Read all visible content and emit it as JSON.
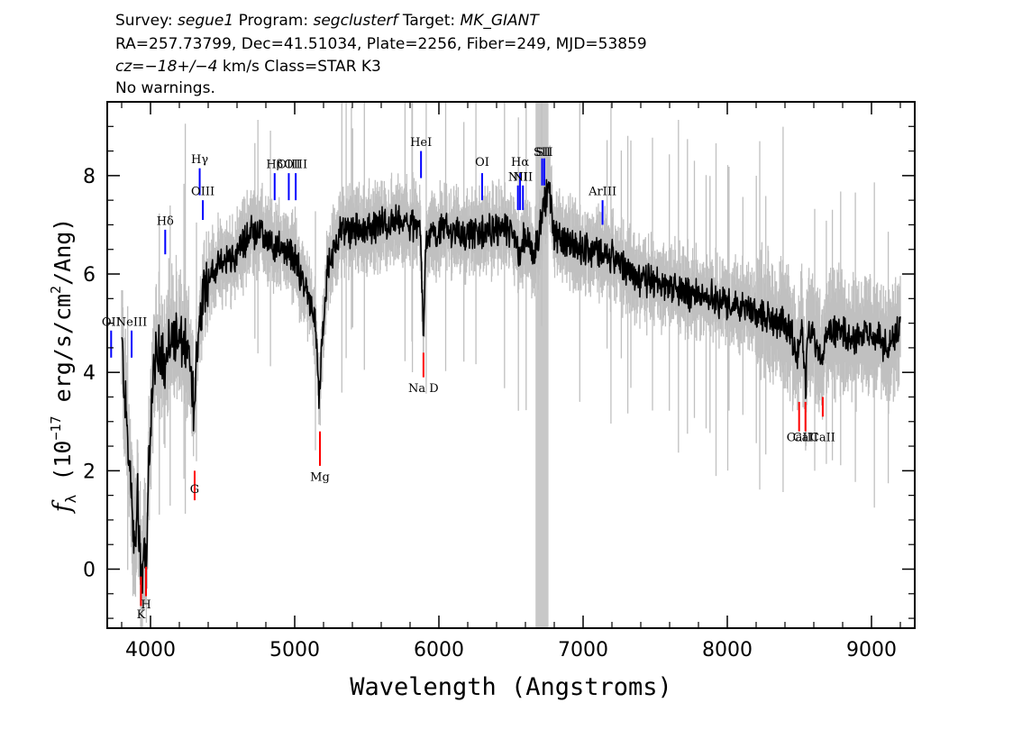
{
  "header": {
    "survey_label": "Survey:",
    "survey": "segue1",
    "program_label": "Program:",
    "program": "segclusterf",
    "target_label": "Target:",
    "target": "MK_GIANT",
    "line2": "RA=257.73799, Dec=41.51034, Plate=2256, Fiber=249, MJD=53859",
    "cz_label": "cz=",
    "cz_value": "−18+/−4",
    "cz_rest": " km/s Class=STAR K3",
    "warnings": "No warnings."
  },
  "colors": {
    "flux": "#000000",
    "error_band": "#c0c0c0",
    "mask_band": "#c8c8c8",
    "emission_marker": "#0000ff",
    "absorption_marker": "#ff0000"
  },
  "chart_data": {
    "type": "line",
    "xlabel": "Wavelength (Angstroms)",
    "ylabel_main": "f",
    "ylabel_sub": "λ",
    "ylabel_rest": " (10",
    "ylabel_exp": "−17",
    "ylabel_rest2": " erg/s/cm",
    "ylabel_exp2": "2",
    "ylabel_rest3": "/Ang)",
    "xlim": [
      3700,
      9300
    ],
    "ylim": [
      -1.2,
      9.5
    ],
    "x_ticks": [
      4000,
      5000,
      6000,
      7000,
      8000,
      9000
    ],
    "x_tick_labels": [
      "4000",
      "5000",
      "6000",
      "7000",
      "8000",
      "9000"
    ],
    "y_ticks": [
      0,
      2,
      4,
      6,
      8
    ],
    "y_tick_labels": [
      "0",
      "2",
      "4",
      "6",
      "8"
    ],
    "masked_region": [
      6670,
      6760
    ],
    "flux_anchors": [
      [
        3800,
        4.6
      ],
      [
        3830,
        3.2
      ],
      [
        3860,
        1.8
      ],
      [
        3890,
        0.2
      ],
      [
        3910,
        1.6
      ],
      [
        3935,
        -0.3
      ],
      [
        3960,
        0.8
      ],
      [
        3970,
        -0.5
      ],
      [
        3990,
        2.2
      ],
      [
        4010,
        3.7
      ],
      [
        4040,
        4.3
      ],
      [
        4080,
        4.5
      ],
      [
        4100,
        4.2
      ],
      [
        4150,
        4.8
      ],
      [
        4200,
        4.6
      ],
      [
        4260,
        4.4
      ],
      [
        4300,
        3.3
      ],
      [
        4330,
        4.8
      ],
      [
        4370,
        5.8
      ],
      [
        4420,
        6.0
      ],
      [
        4500,
        6.2
      ],
      [
        4600,
        6.4
      ],
      [
        4700,
        6.9
      ],
      [
        4800,
        6.7
      ],
      [
        4860,
        6.5
      ],
      [
        4900,
        6.6
      ],
      [
        5000,
        6.3
      ],
      [
        5080,
        5.7
      ],
      [
        5140,
        5.1
      ],
      [
        5170,
        3.4
      ],
      [
        5190,
        4.6
      ],
      [
        5230,
        6.2
      ],
      [
        5300,
        6.8
      ],
      [
        5400,
        6.9
      ],
      [
        5500,
        6.9
      ],
      [
        5600,
        7.0
      ],
      [
        5700,
        7.05
      ],
      [
        5800,
        7.0
      ],
      [
        5870,
        6.9
      ],
      [
        5893,
        4.7
      ],
      [
        5910,
        6.8
      ],
      [
        6000,
        6.9
      ],
      [
        6100,
        6.9
      ],
      [
        6200,
        6.75
      ],
      [
        6300,
        6.85
      ],
      [
        6400,
        6.9
      ],
      [
        6500,
        6.85
      ],
      [
        6560,
        6.4
      ],
      [
        6600,
        6.8
      ],
      [
        6660,
        6.4
      ],
      [
        6760,
        7.8
      ],
      [
        6800,
        6.8
      ],
      [
        6900,
        6.65
      ],
      [
        7000,
        6.55
      ],
      [
        7100,
        6.45
      ],
      [
        7200,
        6.35
      ],
      [
        7300,
        6.1
      ],
      [
        7400,
        5.9
      ],
      [
        7500,
        5.85
      ],
      [
        7600,
        5.75
      ],
      [
        7700,
        5.65
      ],
      [
        7800,
        5.55
      ],
      [
        7900,
        5.5
      ],
      [
        8000,
        5.4
      ],
      [
        8100,
        5.3
      ],
      [
        8200,
        5.2
      ],
      [
        8300,
        5.1
      ],
      [
        8400,
        5.0
      ],
      [
        8498,
        4.4
      ],
      [
        8520,
        5.0
      ],
      [
        8542,
        3.6
      ],
      [
        8560,
        4.9
      ],
      [
        8662,
        4.3
      ],
      [
        8680,
        4.9
      ],
      [
        8800,
        4.8
      ],
      [
        8900,
        4.7
      ],
      [
        9000,
        4.8
      ],
      [
        9100,
        4.5
      ],
      [
        9200,
        4.9
      ]
    ],
    "emission_lines": [
      {
        "label": "OII",
        "wave": 3727,
        "y_label": 4.95,
        "y_bar": [
          4.3,
          4.85
        ]
      },
      {
        "label": "NeIII",
        "wave": 3869,
        "y_label": 4.95,
        "y_bar": [
          4.3,
          4.85
        ]
      },
      {
        "label": "Hδ",
        "wave": 4102,
        "y_label": 7.0,
        "y_bar": [
          6.4,
          6.9
        ]
      },
      {
        "label": "Hγ",
        "wave": 4341,
        "y_label": 8.25,
        "y_bar": [
          7.6,
          8.15
        ]
      },
      {
        "label": "OIII",
        "wave": 4363,
        "y_label": 7.6,
        "y_bar": [
          7.1,
          7.5
        ]
      },
      {
        "label": "Hβ",
        "wave": 4861,
        "y_label": 8.15,
        "y_bar": [
          7.5,
          8.05
        ]
      },
      {
        "label": "OIII",
        "wave": 4959,
        "y_label": 8.15,
        "y_bar": [
          7.5,
          8.05
        ]
      },
      {
        "label": "OIII",
        "wave": 5007,
        "y_label": 8.15,
        "y_bar": [
          7.5,
          8.05
        ]
      },
      {
        "label": "HeI",
        "wave": 5876,
        "y_label": 8.6,
        "y_bar": [
          7.95,
          8.5
        ]
      },
      {
        "label": "OI",
        "wave": 6300,
        "y_label": 8.2,
        "y_bar": [
          7.5,
          8.05
        ]
      },
      {
        "label": "NII",
        "wave": 6548,
        "y_label": 7.9,
        "y_bar": [
          7.3,
          7.8
        ]
      },
      {
        "label": "Hα",
        "wave": 6563,
        "y_label": 8.2,
        "y_bar": [
          7.3,
          8.05
        ]
      },
      {
        "label": "NII",
        "wave": 6583,
        "y_label": 7.9,
        "y_bar": [
          7.3,
          7.8
        ]
      },
      {
        "label": "SII",
        "wave": 6716,
        "y_label": 8.4,
        "y_bar": [
          7.8,
          8.35
        ]
      },
      {
        "label": "SII",
        "wave": 6731,
        "y_label": 8.4,
        "y_bar": [
          7.8,
          8.35
        ]
      },
      {
        "label": "ArIII",
        "wave": 7135,
        "y_label": 7.6,
        "y_bar": [
          7.0,
          7.5
        ]
      }
    ],
    "absorption_lines": [
      {
        "label": "K",
        "wave": 3934,
        "y_label": -1.0,
        "y_bar": [
          -0.75,
          -0.15
        ]
      },
      {
        "label": "H",
        "wave": 3969,
        "y_label": -0.8,
        "y_bar": [
          -0.55,
          0.05
        ]
      },
      {
        "label": "G",
        "wave": 4306,
        "y_label": 1.55,
        "y_bar": [
          1.4,
          2.0
        ]
      },
      {
        "label": "Mg",
        "wave": 5175,
        "y_label": 1.8,
        "y_bar": [
          2.1,
          2.8
        ]
      },
      {
        "label": "Na  D",
        "wave": 5893,
        "y_label": 3.6,
        "y_bar": [
          3.9,
          4.4
        ]
      },
      {
        "label": "CaII",
        "wave": 8498,
        "y_label": 2.6,
        "y_bar": [
          2.8,
          3.4
        ]
      },
      {
        "label": "CaII",
        "wave": 8542,
        "y_label": 2.6,
        "y_bar": [
          2.8,
          3.4
        ]
      },
      {
        "label": "CaII",
        "wave": 8662,
        "y_label": 2.6,
        "y_bar": [
          3.1,
          3.5
        ]
      }
    ]
  }
}
